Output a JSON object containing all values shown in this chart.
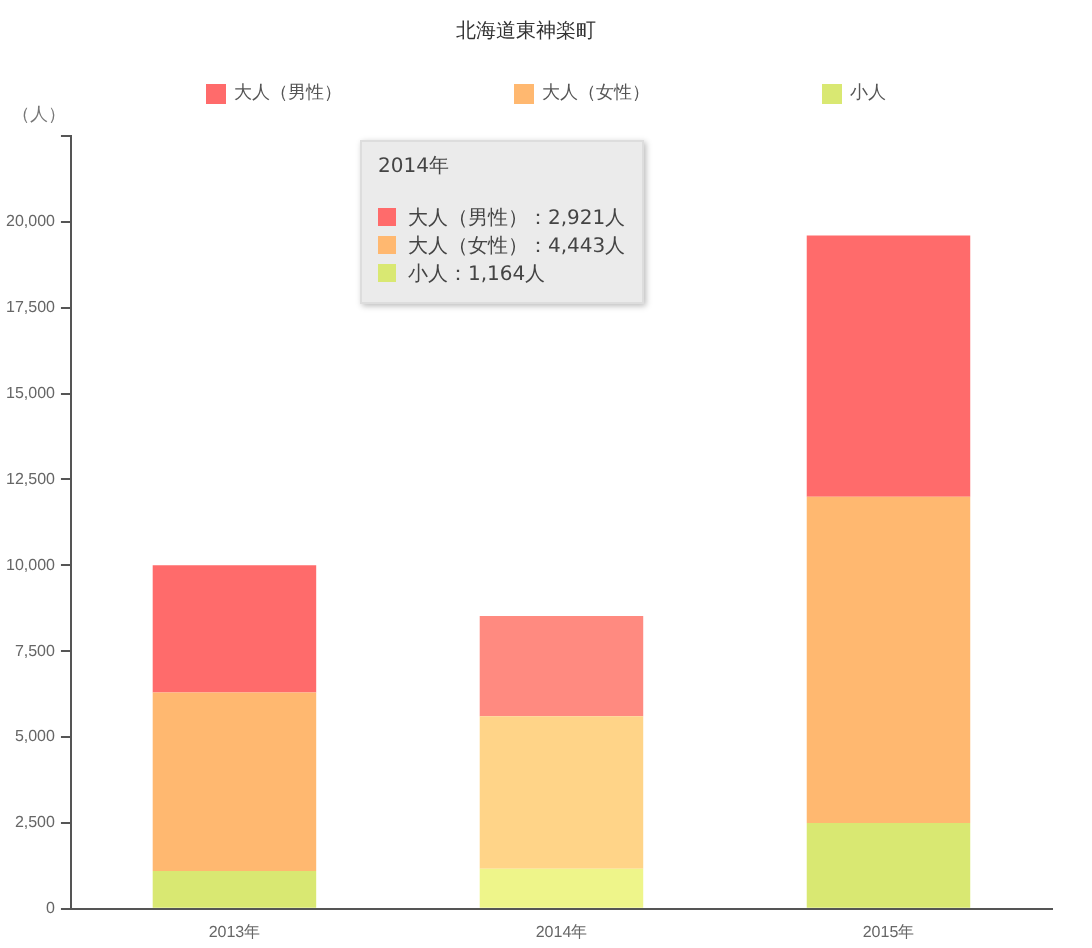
{
  "chart_data": {
    "type": "bar",
    "title": "北海道東神楽町",
    "ylabel": "（人）",
    "stacked": true,
    "legend": "top",
    "categories": [
      "2013年",
      "2014年",
      "2015年"
    ],
    "series": [
      {
        "name": "小人",
        "color": "#d9e872",
        "colors": [
          "#d9e872",
          "#eef58a",
          "#d9e872"
        ],
        "values": [
          1100,
          1164,
          2500
        ]
      },
      {
        "name": "大人（女性）",
        "color": "#ffb870",
        "colors": [
          "#ffb870",
          "#ffd488",
          "#ffb870"
        ],
        "values": [
          5200,
          4443,
          9500
        ]
      },
      {
        "name": "大人（男性）",
        "color": "#ff6b6b",
        "colors": [
          "#ff6b6b",
          "#ff8a80",
          "#ff6b6b"
        ],
        "values": [
          3700,
          2921,
          7600
        ]
      }
    ],
    "ylim": [
      0,
      22500
    ],
    "yticks": [
      0,
      {
        "value": 2500,
        "label": "2,500"
      },
      {
        "value": 5000,
        "label": "5,000"
      },
      {
        "value": 7500,
        "label": "7,500"
      },
      {
        "value": 10000,
        "label": "10,000"
      },
      {
        "value": 12500,
        "label": "12,500"
      },
      {
        "value": 15000,
        "label": "15,000"
      },
      {
        "value": 17500,
        "label": "17,500"
      },
      {
        "value": 20000,
        "label": "20,000"
      },
      {
        "value": 22500,
        "label": null
      }
    ],
    "grid": false,
    "annotations": [
      "2014年",
      "大人（男性）：2,921人",
      "大人（女性）：4,443人",
      "小人：1,164人"
    ]
  }
}
